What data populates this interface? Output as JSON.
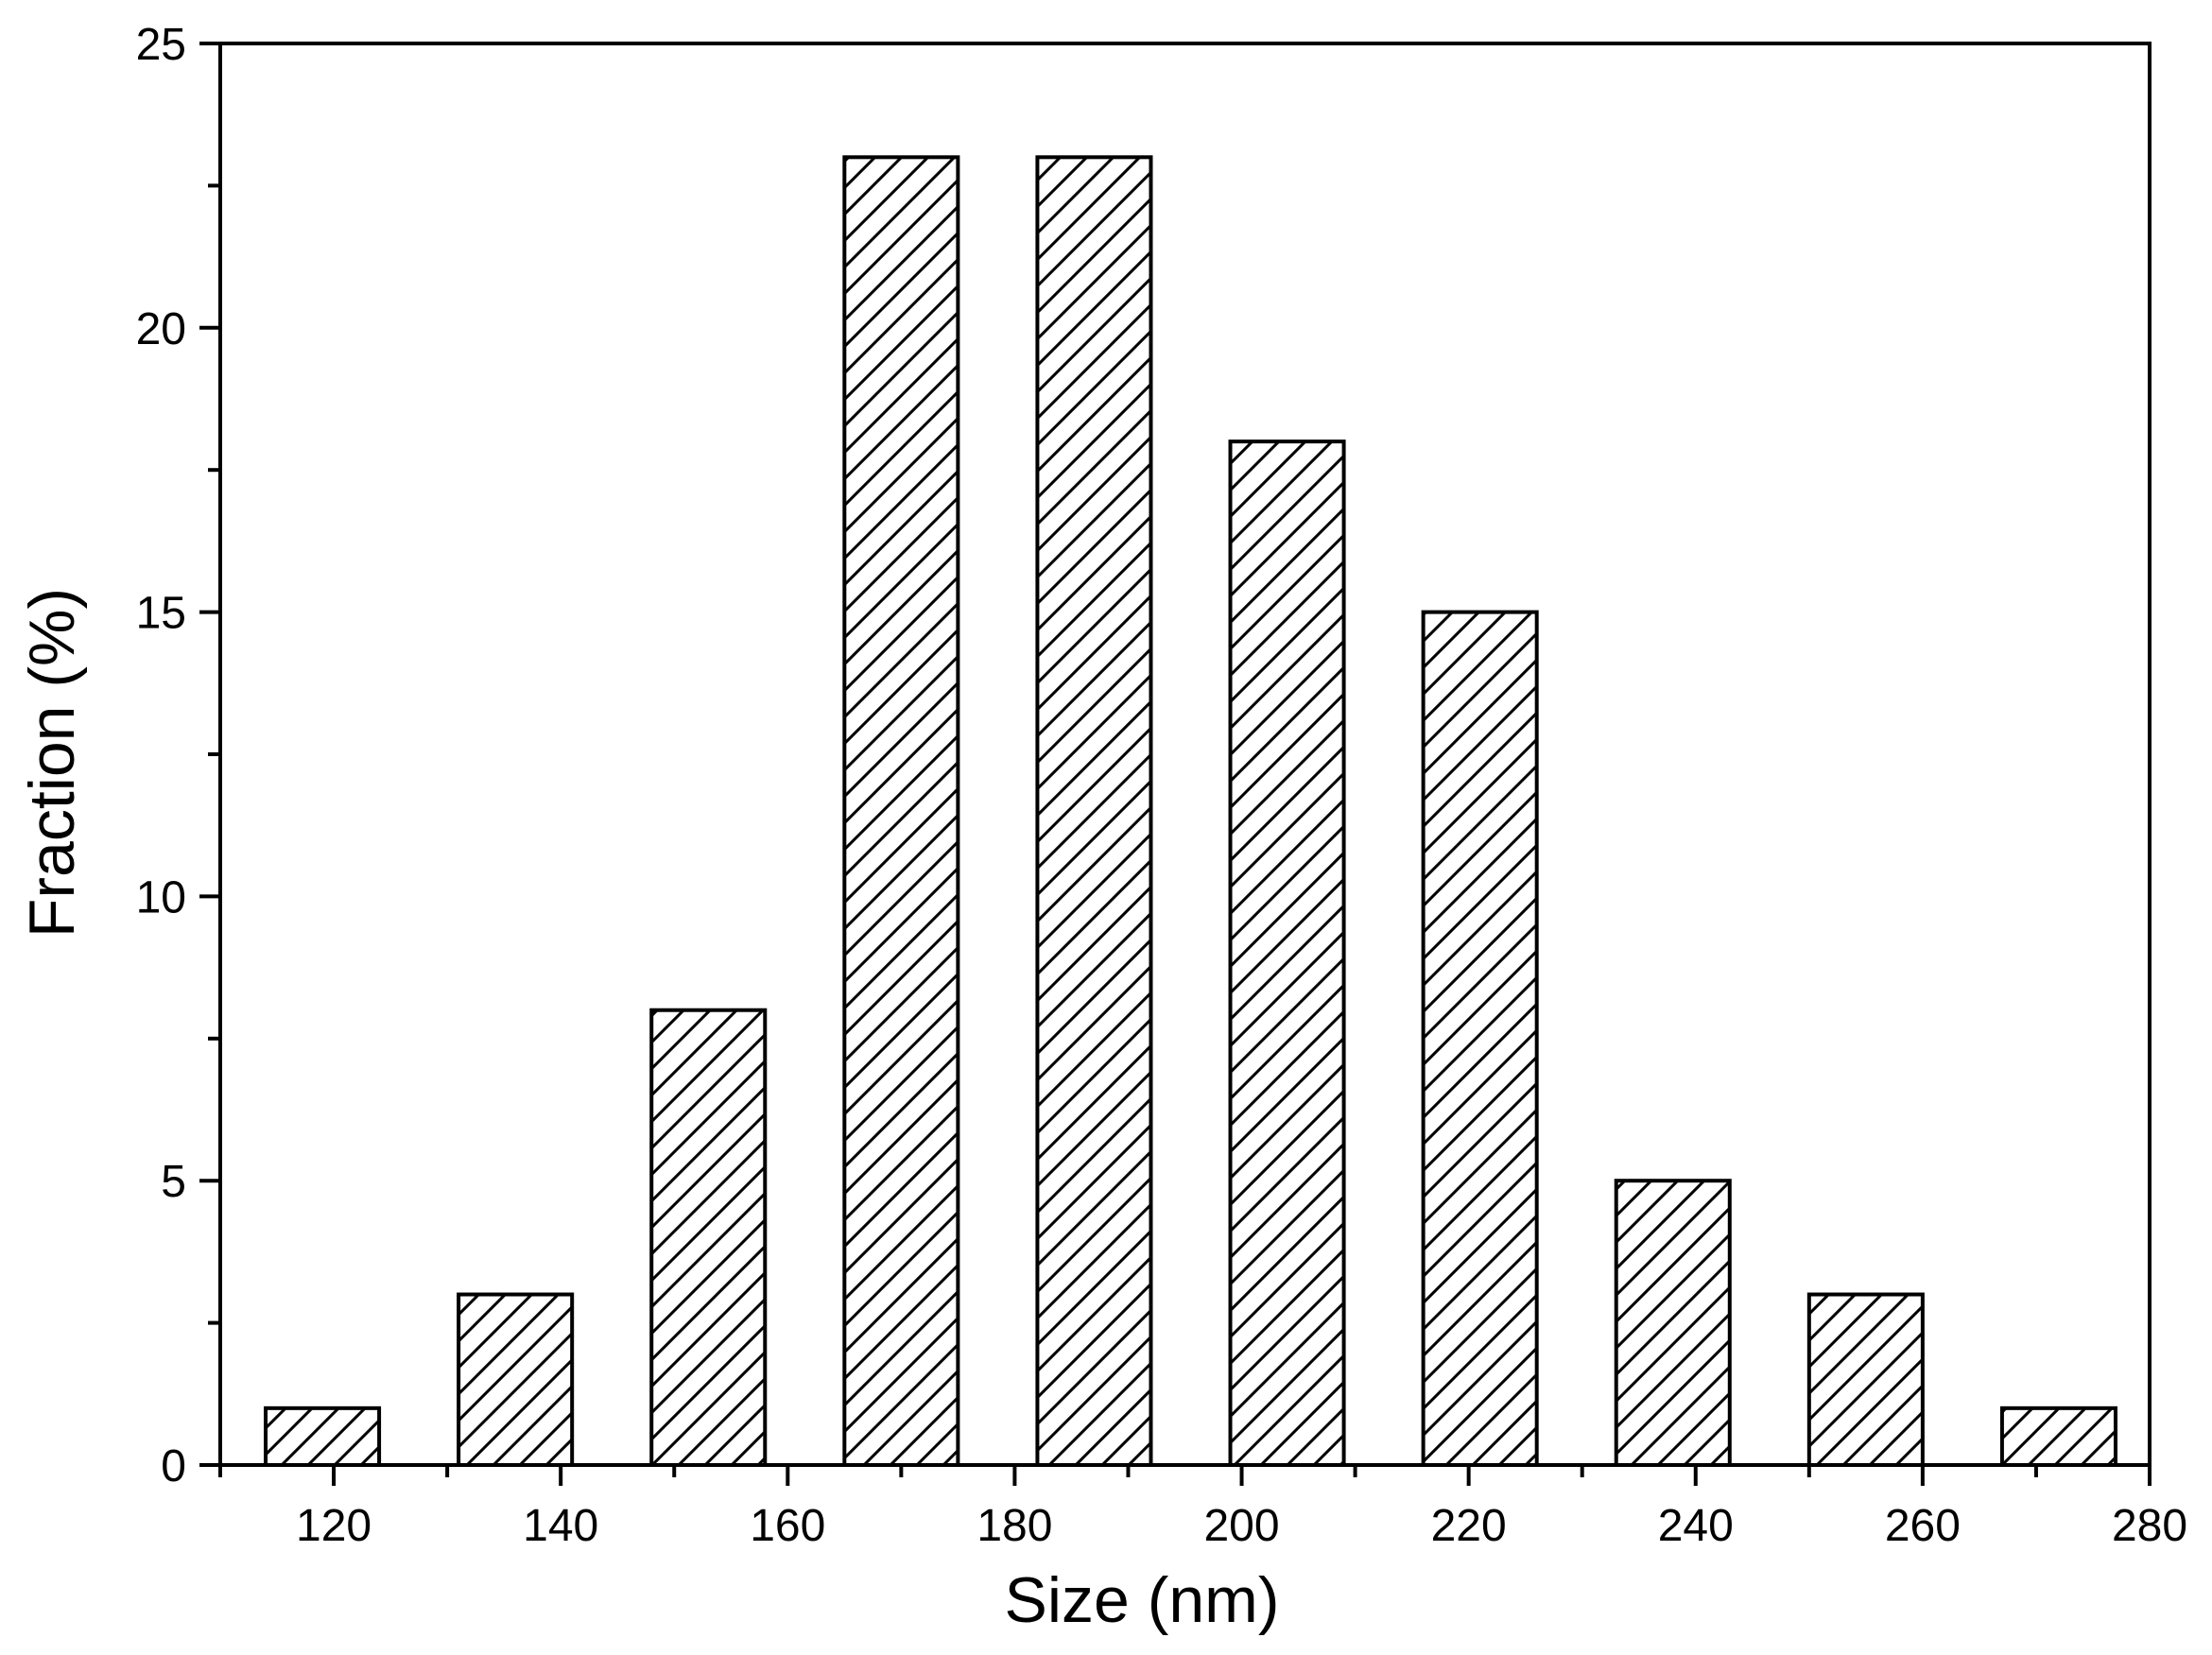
{
  "chart_data": {
    "type": "bar",
    "title": "",
    "xlabel": "Size (nm)",
    "ylabel": "Fraction (%)",
    "xlim": [
      110,
      280
    ],
    "ylim": [
      0,
      25
    ],
    "xticks": [
      "120",
      "140",
      "160",
      "180",
      "200",
      "220",
      "240",
      "260",
      "280"
    ],
    "yticks": [
      "0",
      "5",
      "10",
      "15",
      "20",
      "25"
    ],
    "bin_width": 10,
    "categories": [
      "119",
      "136",
      "153",
      "170",
      "187",
      "204",
      "221",
      "238",
      "255",
      "272"
    ],
    "x": [
      119,
      136,
      153,
      170,
      187,
      204,
      221,
      238,
      255,
      272
    ],
    "values": [
      1,
      3,
      8,
      23,
      23,
      18,
      15,
      5,
      3,
      1
    ],
    "bar_fill": "diagonal-hatch",
    "grid": false,
    "frame": "box",
    "colors": {
      "stroke": "#000000",
      "fill": "#ffffff"
    }
  }
}
